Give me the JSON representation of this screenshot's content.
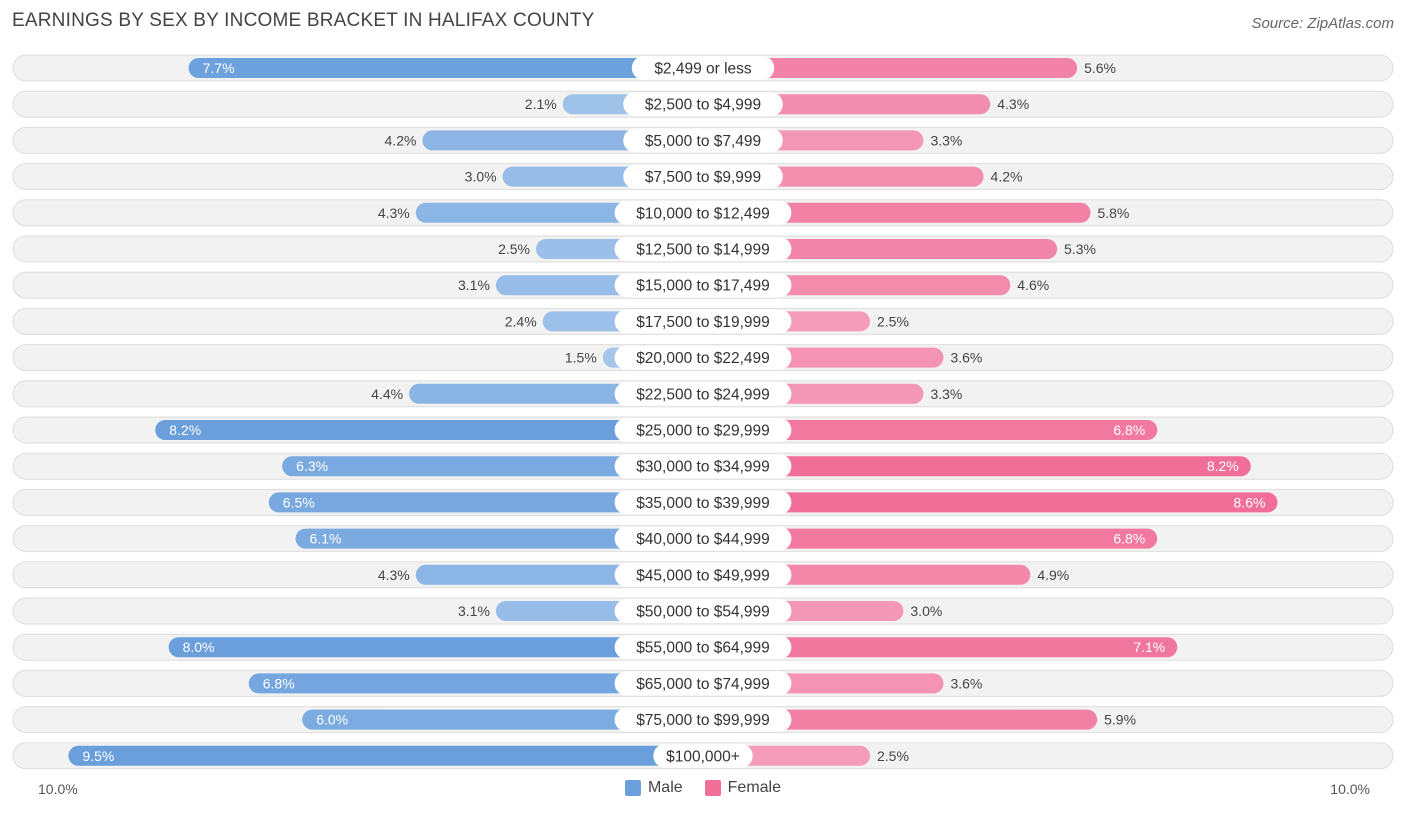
{
  "title": "EARNINGS BY SEX BY INCOME BRACKET IN HALIFAX COUNTY",
  "source": "Source: ZipAtlas.com",
  "legend": {
    "male": "Male",
    "female": "Female"
  },
  "axis": {
    "left_label": "10.0%",
    "right_label": "10.0%"
  },
  "colors": {
    "male_strong": "#6a9fdc",
    "male_light": "#a9c8ec",
    "female_strong": "#f06e98",
    "female_light": "#f6a9c3",
    "row_bg": "#f2f2f2",
    "row_border": "#dddddd"
  },
  "chart_data": {
    "type": "bar",
    "orientation": "horizontal-diverging",
    "title": "EARNINGS BY SEX BY INCOME BRACKET IN HALIFAX COUNTY",
    "xlim": [
      -10.0,
      10.0
    ],
    "unit": "%",
    "categories": [
      "$2,499 or less",
      "$2,500 to $4,999",
      "$5,000 to $7,499",
      "$7,500 to $9,999",
      "$10,000 to $12,499",
      "$12,500 to $14,999",
      "$15,000 to $17,499",
      "$17,500 to $19,999",
      "$20,000 to $22,499",
      "$22,500 to $24,999",
      "$25,000 to $29,999",
      "$30,000 to $34,999",
      "$35,000 to $39,999",
      "$40,000 to $44,999",
      "$45,000 to $49,999",
      "$50,000 to $54,999",
      "$55,000 to $64,999",
      "$65,000 to $74,999",
      "$75,000 to $99,999",
      "$100,000+"
    ],
    "series": [
      {
        "name": "Male",
        "values": [
          7.7,
          2.1,
          4.2,
          3.0,
          4.3,
          2.5,
          3.1,
          2.4,
          1.5,
          4.4,
          8.2,
          6.3,
          6.5,
          6.1,
          4.3,
          3.1,
          8.0,
          6.8,
          6.0,
          9.5
        ]
      },
      {
        "name": "Female",
        "values": [
          5.6,
          4.3,
          3.3,
          4.2,
          5.8,
          5.3,
          4.6,
          2.5,
          3.6,
          3.3,
          6.8,
          8.2,
          8.6,
          6.8,
          4.9,
          3.0,
          7.1,
          3.6,
          5.9,
          2.5
        ]
      }
    ],
    "legend_position": "bottom-center"
  }
}
